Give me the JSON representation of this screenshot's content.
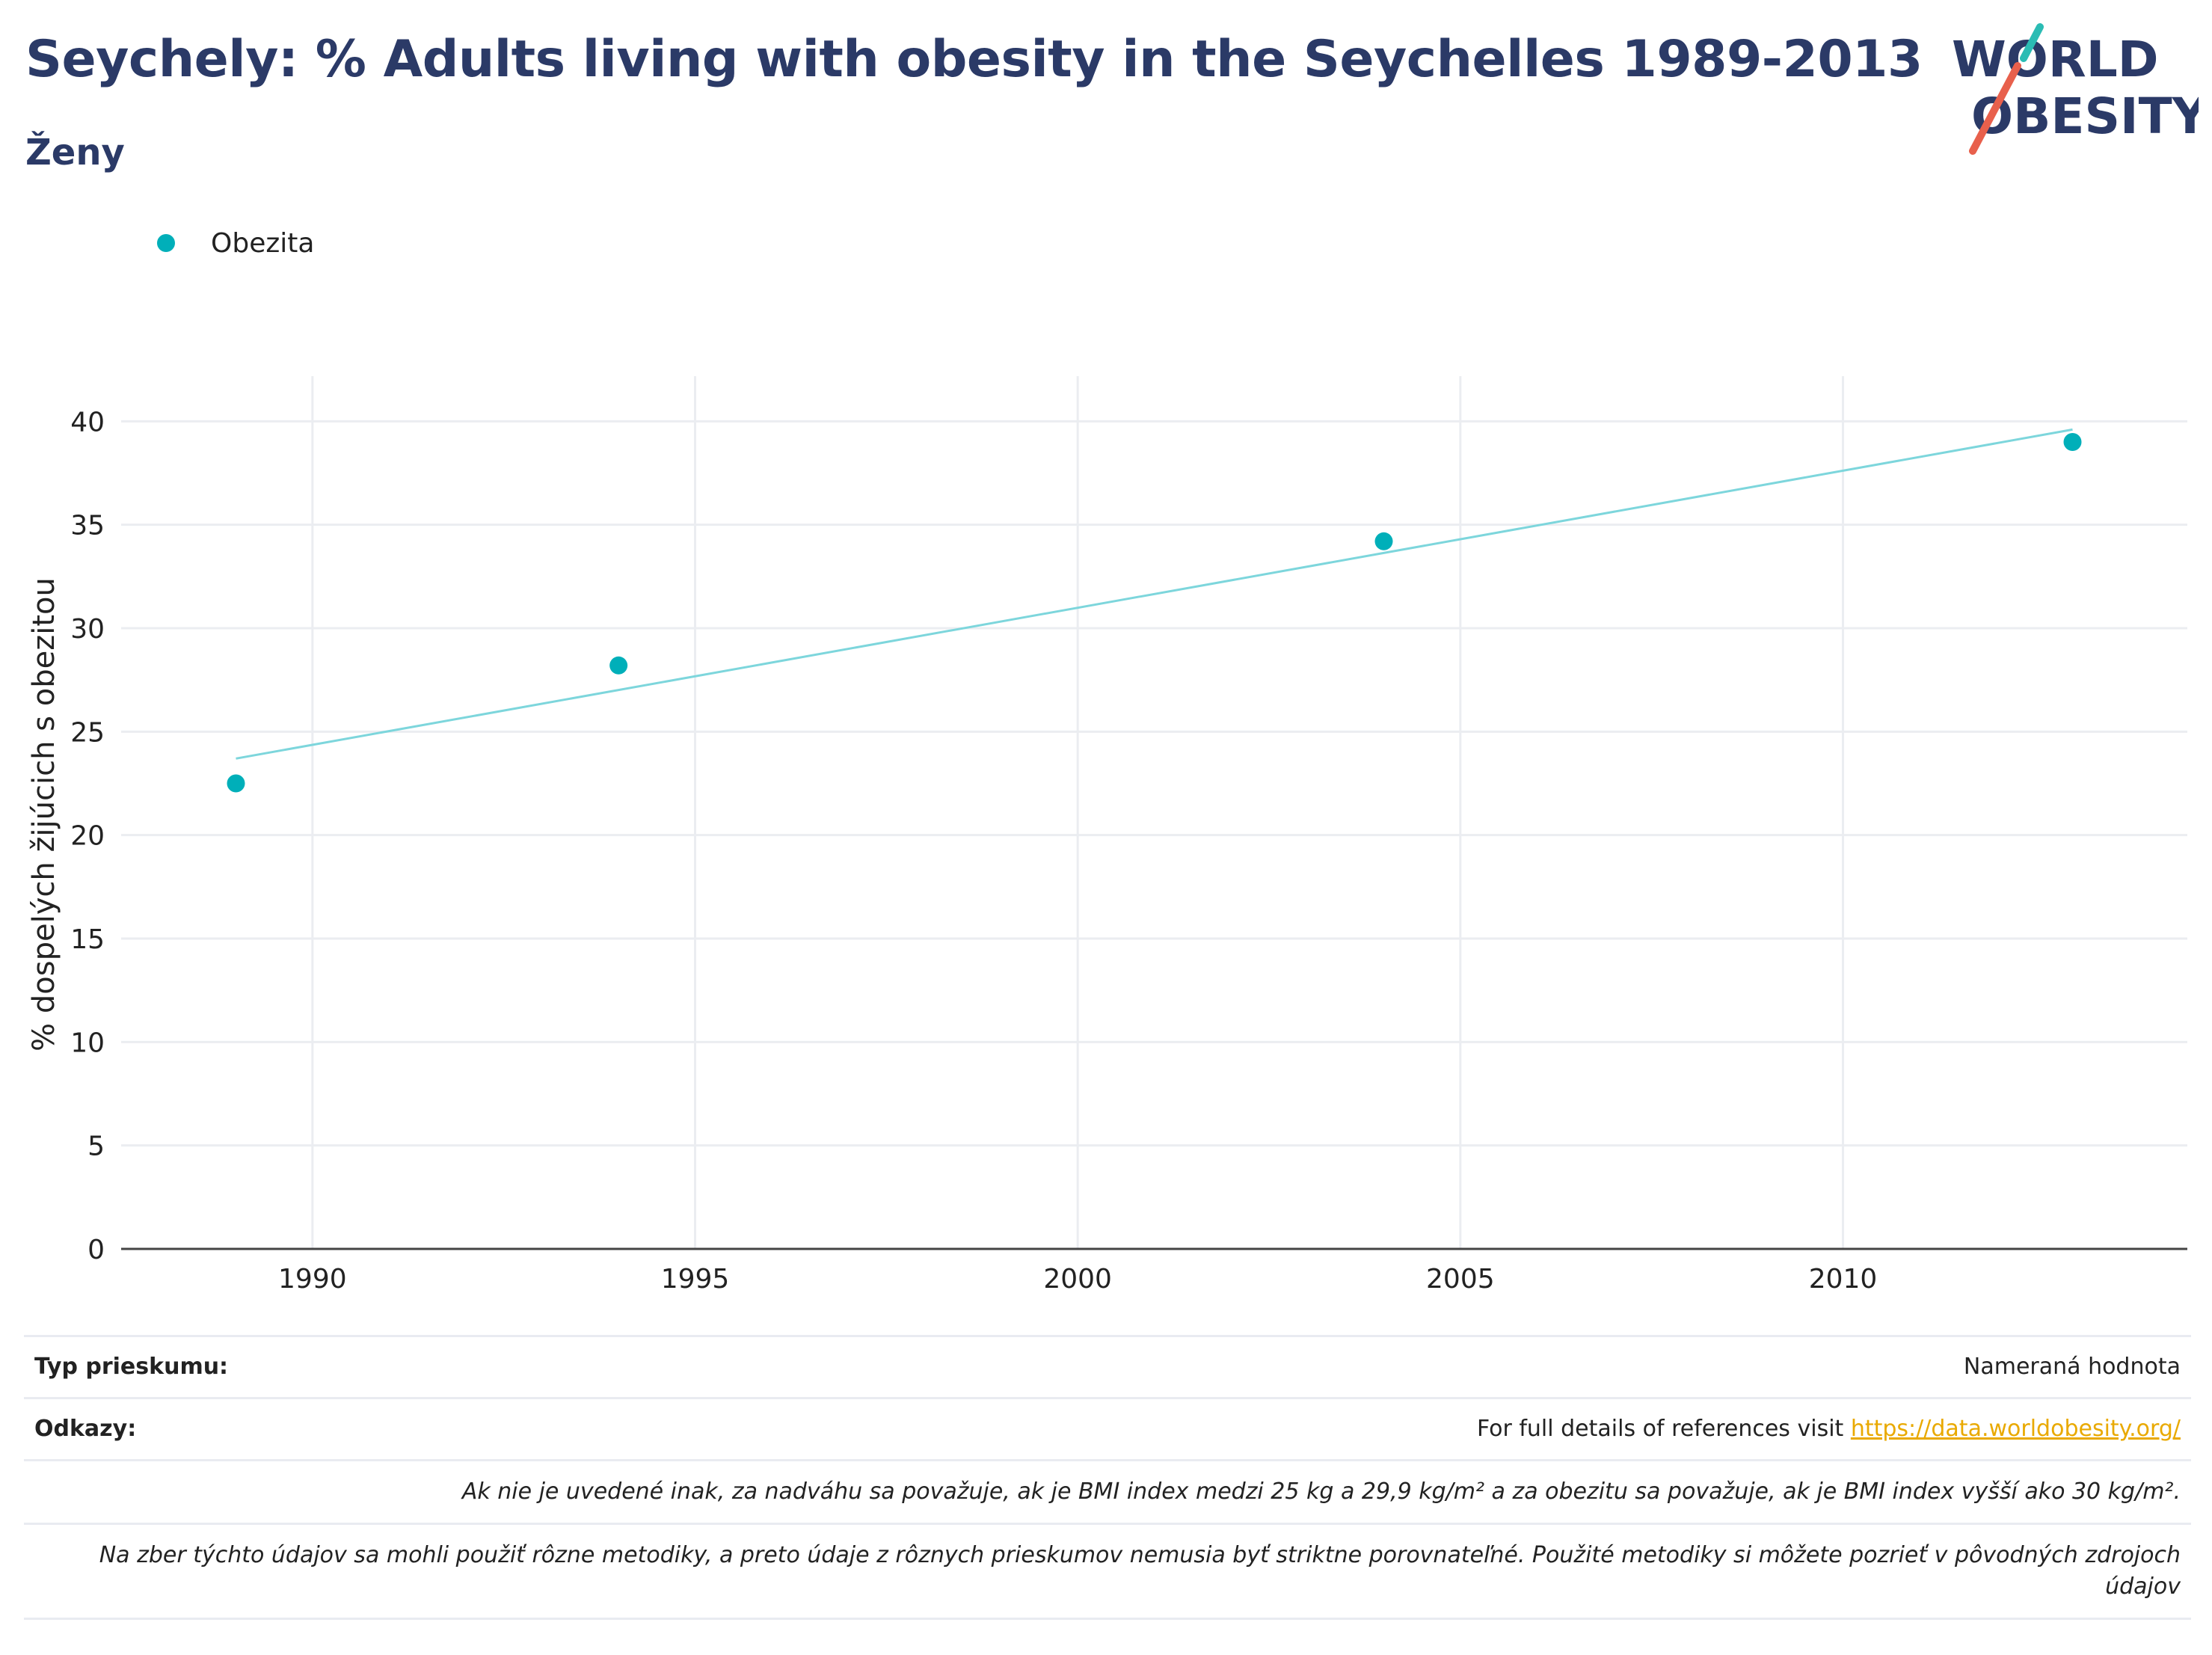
{
  "header": {
    "title": "Seychely: % Adults living with obesity in the Seychelles 1989-2013",
    "subtitle": "Ženy"
  },
  "logo": {
    "line1": "WORLD",
    "line2": "OBESITY",
    "color": "#2b3a67",
    "accent_teal": "#2bbcb4",
    "accent_red": "#e8604c"
  },
  "legend": {
    "label": "Obezita",
    "color": "#00afb9"
  },
  "chart_data": {
    "type": "scatter",
    "ylabel": "% dospelých žijúcich s obezitou",
    "xlabel": "",
    "xlim": [
      1987.5,
      2014.5
    ],
    "ylim": [
      0,
      42
    ],
    "x_ticks": [
      1990,
      1995,
      2000,
      2005,
      2010
    ],
    "y_ticks": [
      0,
      5,
      10,
      15,
      20,
      25,
      30,
      35,
      40
    ],
    "grid": true,
    "series": [
      {
        "name": "Obezita",
        "color": "#00afb9",
        "x": [
          1989,
          1994,
          2004,
          2013
        ],
        "y": [
          22.5,
          28.2,
          34.2,
          39.0
        ]
      }
    ],
    "trendline": {
      "color": "#7dd6dc",
      "x": [
        1989,
        2013
      ],
      "y": [
        23.7,
        39.6
      ]
    }
  },
  "footer": {
    "survey_type_label": "Typ prieskumu:",
    "survey_type_value": "Nameraná hodnota",
    "references_label": "Odkazy:",
    "references_text": "For full details of references visit ",
    "references_link": "https://data.worldobesity.org/",
    "note1": "Ak nie je uvedené inak, za nadváhu sa považuje, ak je BMI index medzi 25 kg a 29,9 kg/m² a za obezitu sa považuje, ak je BMI index vyšší ako 30 kg/m².",
    "note2": "Na zber týchto údajov sa mohli použiť rôzne metodiky, a preto údaje z rôznych prieskumov nemusia byť striktne porovnateľné. Použité metodiky si môžete pozrieť v pôvodných zdrojoch údajov"
  }
}
